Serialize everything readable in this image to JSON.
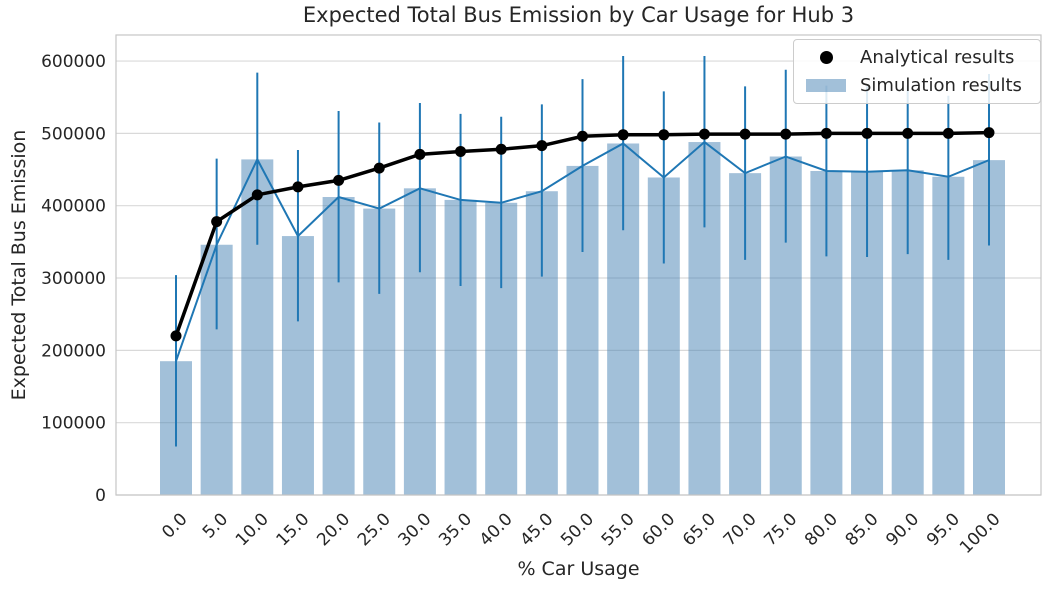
{
  "figure": {
    "title": "Expected Total Bus Emission by Car Usage for Hub 3",
    "xlabel": "% Car Usage",
    "ylabel": "Expected Total Bus Emission",
    "legend": [
      {
        "marker": "dot-marker",
        "label": "Analytical results"
      },
      {
        "marker": "patch-marker",
        "label": "Simulation results"
      }
    ]
  },
  "colors": {
    "bar_fill": "rgba(70,130,180,0.5)",
    "error_line": "#1f77b4",
    "simulation_line": "#1f77b4",
    "analytical_line": "#000000",
    "grid": "#d9d9d9",
    "spine": "#c6c6c6",
    "text": "#262626",
    "legend_bg": "rgba(255,255,255,0.85)"
  },
  "chart_data": {
    "type": "bar",
    "title": "Expected Total Bus Emission by Car Usage for Hub 3",
    "xlabel": "% Car Usage",
    "ylabel": "Expected Total Bus Emission",
    "categories": [
      "0.0",
      "5.0",
      "10.0",
      "15.0",
      "20.0",
      "25.0",
      "30.0",
      "35.0",
      "40.0",
      "45.0",
      "50.0",
      "55.0",
      "60.0",
      "65.0",
      "70.0",
      "75.0",
      "80.0",
      "85.0",
      "90.0",
      "95.0",
      "100.0"
    ],
    "series": [
      {
        "name": "Analytical results",
        "type": "line-with-dots",
        "values": [
          220000,
          378000,
          415000,
          426000,
          435000,
          452000,
          471000,
          475000,
          478000,
          483000,
          496000,
          498000,
          498000,
          499000,
          499000,
          499000,
          500000,
          500000,
          500000,
          500000,
          501000
        ]
      },
      {
        "name": "Simulation results",
        "type": "bar-with-errorbars-and-line",
        "values": [
          185000,
          346000,
          464000,
          358000,
          412000,
          396000,
          424000,
          408000,
          404000,
          420000,
          455000,
          486000,
          439000,
          488000,
          445000,
          468000,
          448000,
          447000,
          449000,
          440000,
          463000
        ],
        "error_low": [
          67000,
          229000,
          346000,
          240000,
          294000,
          278000,
          308000,
          289000,
          286000,
          302000,
          336000,
          366000,
          320000,
          370000,
          325000,
          349000,
          330000,
          329000,
          333000,
          325000,
          345000
        ],
        "error_high": [
          304000,
          465000,
          584000,
          477000,
          531000,
          515000,
          542000,
          527000,
          523000,
          540000,
          575000,
          607000,
          558000,
          607000,
          565000,
          588000,
          566000,
          565000,
          566000,
          552000,
          582000
        ]
      }
    ],
    "yticks": [
      0,
      100000,
      200000,
      300000,
      400000,
      500000,
      600000
    ],
    "ylim": [
      0,
      636000
    ],
    "grid": "horizontal",
    "legend_position": "upper right",
    "xtick_rotation": 45
  }
}
